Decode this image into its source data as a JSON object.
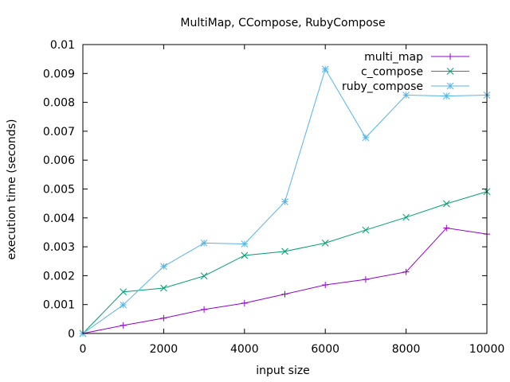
{
  "chart_data": {
    "type": "line",
    "title": "MultiMap, CCompose, RubyCompose",
    "xlabel": "input size",
    "ylabel": "execution time (seconds)",
    "xlim": [
      0,
      10000
    ],
    "ylim": [
      0,
      0.01
    ],
    "x_ticks": [
      0,
      2000,
      4000,
      6000,
      8000,
      10000
    ],
    "x_tick_labels": [
      "0",
      "2000",
      "4000",
      "6000",
      "8000",
      "10000"
    ],
    "y_ticks": [
      0,
      0.001,
      0.002,
      0.003,
      0.004,
      0.005,
      0.006,
      0.007,
      0.008,
      0.009,
      0.01
    ],
    "y_tick_labels": [
      "0",
      "0.001",
      "0.002",
      "0.003",
      "0.004",
      "0.005",
      "0.006",
      "0.007",
      "0.008",
      "0.009",
      "0.01"
    ],
    "grid": false,
    "legend_position": "top-right",
    "x": [
      0,
      1000,
      2000,
      3000,
      4000,
      5000,
      6000,
      7000,
      8000,
      9000,
      10000
    ],
    "series": [
      {
        "name": "multi_map",
        "color": "#9400d3",
        "marker": "plus",
        "values": [
          0,
          0.00028,
          0.00053,
          0.00083,
          0.00105,
          0.00136,
          0.00168,
          0.00187,
          0.00213,
          0.00365,
          0.00344
        ]
      },
      {
        "name": "c_compose",
        "color": "#009e73",
        "marker": "cross",
        "values": [
          0,
          0.00144,
          0.00157,
          0.00199,
          0.0027,
          0.00284,
          0.00313,
          0.00358,
          0.00402,
          0.00449,
          0.00491
        ]
      },
      {
        "name": "ruby_compose",
        "color": "#56b4e9",
        "marker": "star",
        "values": [
          0,
          0.00099,
          0.00232,
          0.00313,
          0.0031,
          0.00456,
          0.00915,
          0.00678,
          0.00825,
          0.00822,
          0.00825
        ]
      }
    ]
  }
}
